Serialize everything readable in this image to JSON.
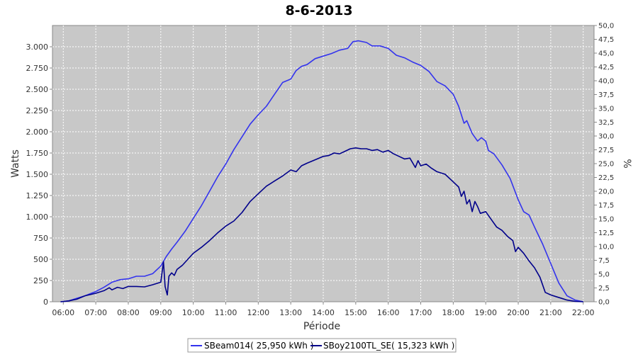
{
  "chart_data": {
    "type": "line",
    "title": "8-6-2013",
    "xlabel": "Période",
    "ylabel": "Watts",
    "ylabel_right": "%",
    "x_ticks": [
      "06:00",
      "07:00",
      "08:00",
      "09:00",
      "10:00",
      "11:00",
      "12:00",
      "13:00",
      "14:00",
      "15:00",
      "16:00",
      "17:00",
      "18:00",
      "19:00",
      "20:00",
      "21:00",
      "22:00"
    ],
    "xlim": [
      "05:40",
      "22:20"
    ],
    "ylim": [
      0,
      3250
    ],
    "y_ticks": [
      0,
      250,
      500,
      750,
      1000,
      1250,
      1500,
      1750,
      2000,
      2250,
      2500,
      2750,
      3000
    ],
    "y_tick_labels": [
      "0",
      "250",
      "500",
      "750",
      "1.000",
      "1.250",
      "1.500",
      "1.750",
      "2.000",
      "2.250",
      "2.500",
      "2.750",
      "3.000"
    ],
    "ylim_right": [
      0,
      50.0
    ],
    "y_right_tick_labels": [
      "0,0",
      "2,5",
      "5,0",
      "7,5",
      "10,0",
      "12,5",
      "15,0",
      "17,5",
      "20,0",
      "22,5",
      "25,0",
      "27,5",
      "30,0",
      "32,5",
      "35,0",
      "37,5",
      "40,0",
      "42,5",
      "45,0",
      "47,5",
      "50,0"
    ],
    "grid": true,
    "legend_position": "bottom",
    "series": [
      {
        "name": "SBeam014( 25,950 kWh )",
        "color": "#3333ee",
        "points": [
          [
            "05:55",
            0
          ],
          [
            "06:10",
            10
          ],
          [
            "06:25",
            40
          ],
          [
            "06:40",
            70
          ],
          [
            "07:00",
            120
          ],
          [
            "07:15",
            170
          ],
          [
            "07:30",
            230
          ],
          [
            "07:45",
            260
          ],
          [
            "08:00",
            270
          ],
          [
            "08:15",
            300
          ],
          [
            "08:30",
            300
          ],
          [
            "08:45",
            330
          ],
          [
            "09:00",
            420
          ],
          [
            "09:10",
            530
          ],
          [
            "09:20",
            620
          ],
          [
            "09:30",
            700
          ],
          [
            "09:45",
            830
          ],
          [
            "10:00",
            980
          ],
          [
            "10:15",
            1130
          ],
          [
            "10:30",
            1300
          ],
          [
            "10:45",
            1470
          ],
          [
            "11:00",
            1620
          ],
          [
            "11:15",
            1790
          ],
          [
            "11:30",
            1940
          ],
          [
            "11:45",
            2090
          ],
          [
            "12:00",
            2200
          ],
          [
            "12:15",
            2300
          ],
          [
            "12:30",
            2440
          ],
          [
            "12:45",
            2580
          ],
          [
            "13:00",
            2620
          ],
          [
            "13:10",
            2720
          ],
          [
            "13:20",
            2770
          ],
          [
            "13:30",
            2790
          ],
          [
            "13:45",
            2860
          ],
          [
            "14:00",
            2890
          ],
          [
            "14:15",
            2920
          ],
          [
            "14:30",
            2960
          ],
          [
            "14:45",
            2980
          ],
          [
            "14:55",
            3060
          ],
          [
            "15:05",
            3070
          ],
          [
            "15:20",
            3050
          ],
          [
            "15:30",
            3010
          ],
          [
            "15:45",
            3010
          ],
          [
            "16:00",
            2980
          ],
          [
            "16:15",
            2900
          ],
          [
            "16:30",
            2870
          ],
          [
            "16:45",
            2820
          ],
          [
            "17:00",
            2780
          ],
          [
            "17:15",
            2710
          ],
          [
            "17:30",
            2590
          ],
          [
            "17:45",
            2540
          ],
          [
            "18:00",
            2440
          ],
          [
            "18:10",
            2300
          ],
          [
            "18:20",
            2100
          ],
          [
            "18:25",
            2130
          ],
          [
            "18:35",
            1980
          ],
          [
            "18:45",
            1890
          ],
          [
            "18:52",
            1930
          ],
          [
            "19:00",
            1890
          ],
          [
            "19:05",
            1780
          ],
          [
            "19:15",
            1740
          ],
          [
            "19:30",
            1610
          ],
          [
            "19:45",
            1450
          ],
          [
            "20:00",
            1200
          ],
          [
            "20:10",
            1060
          ],
          [
            "20:20",
            1020
          ],
          [
            "20:30",
            880
          ],
          [
            "20:45",
            680
          ],
          [
            "21:00",
            450
          ],
          [
            "21:15",
            220
          ],
          [
            "21:30",
            70
          ],
          [
            "21:45",
            20
          ],
          [
            "22:00",
            0
          ]
        ]
      },
      {
        "name": "SBoy2100TL_SE( 15,323 kWh )",
        "color": "#00008b",
        "points": [
          [
            "05:55",
            0
          ],
          [
            "06:10",
            10
          ],
          [
            "06:25",
            30
          ],
          [
            "06:40",
            70
          ],
          [
            "07:00",
            100
          ],
          [
            "07:15",
            130
          ],
          [
            "07:25",
            165
          ],
          [
            "07:30",
            140
          ],
          [
            "07:40",
            170
          ],
          [
            "07:50",
            155
          ],
          [
            "08:00",
            180
          ],
          [
            "08:15",
            180
          ],
          [
            "08:30",
            175
          ],
          [
            "08:45",
            200
          ],
          [
            "09:00",
            230
          ],
          [
            "09:05",
            470
          ],
          [
            "09:08",
            180
          ],
          [
            "09:12",
            80
          ],
          [
            "09:15",
            300
          ],
          [
            "09:20",
            340
          ],
          [
            "09:25",
            310
          ],
          [
            "09:30",
            380
          ],
          [
            "09:40",
            430
          ],
          [
            "10:00",
            570
          ],
          [
            "10:15",
            640
          ],
          [
            "10:30",
            720
          ],
          [
            "10:45",
            810
          ],
          [
            "11:00",
            890
          ],
          [
            "11:15",
            950
          ],
          [
            "11:30",
            1050
          ],
          [
            "11:45",
            1180
          ],
          [
            "12:00",
            1270
          ],
          [
            "12:15",
            1360
          ],
          [
            "12:30",
            1420
          ],
          [
            "12:45",
            1480
          ],
          [
            "13:00",
            1550
          ],
          [
            "13:10",
            1530
          ],
          [
            "13:20",
            1600
          ],
          [
            "13:30",
            1630
          ],
          [
            "13:45",
            1670
          ],
          [
            "14:00",
            1710
          ],
          [
            "14:10",
            1720
          ],
          [
            "14:20",
            1750
          ],
          [
            "14:30",
            1740
          ],
          [
            "14:40",
            1770
          ],
          [
            "14:50",
            1800
          ],
          [
            "15:00",
            1810
          ],
          [
            "15:10",
            1800
          ],
          [
            "15:20",
            1800
          ],
          [
            "15:30",
            1780
          ],
          [
            "15:40",
            1790
          ],
          [
            "15:50",
            1760
          ],
          [
            "16:00",
            1780
          ],
          [
            "16:10",
            1740
          ],
          [
            "16:20",
            1710
          ],
          [
            "16:30",
            1680
          ],
          [
            "16:40",
            1690
          ],
          [
            "16:50",
            1580
          ],
          [
            "16:55",
            1660
          ],
          [
            "17:00",
            1600
          ],
          [
            "17:10",
            1620
          ],
          [
            "17:20",
            1570
          ],
          [
            "17:30",
            1530
          ],
          [
            "17:45",
            1500
          ],
          [
            "18:00",
            1410
          ],
          [
            "18:10",
            1350
          ],
          [
            "18:15",
            1240
          ],
          [
            "18:20",
            1300
          ],
          [
            "18:25",
            1150
          ],
          [
            "18:30",
            1200
          ],
          [
            "18:35",
            1060
          ],
          [
            "18:40",
            1180
          ],
          [
            "18:45",
            1120
          ],
          [
            "18:50",
            1040
          ],
          [
            "19:00",
            1060
          ],
          [
            "19:10",
            970
          ],
          [
            "19:20",
            880
          ],
          [
            "19:30",
            840
          ],
          [
            "19:40",
            770
          ],
          [
            "19:50",
            720
          ],
          [
            "19:55",
            590
          ],
          [
            "20:00",
            640
          ],
          [
            "20:10",
            570
          ],
          [
            "20:20",
            480
          ],
          [
            "20:30",
            400
          ],
          [
            "20:40",
            290
          ],
          [
            "20:50",
            110
          ],
          [
            "21:00",
            80
          ],
          [
            "21:10",
            60
          ],
          [
            "21:20",
            40
          ],
          [
            "21:30",
            20
          ],
          [
            "21:45",
            5
          ],
          [
            "22:00",
            0
          ]
        ]
      }
    ]
  }
}
